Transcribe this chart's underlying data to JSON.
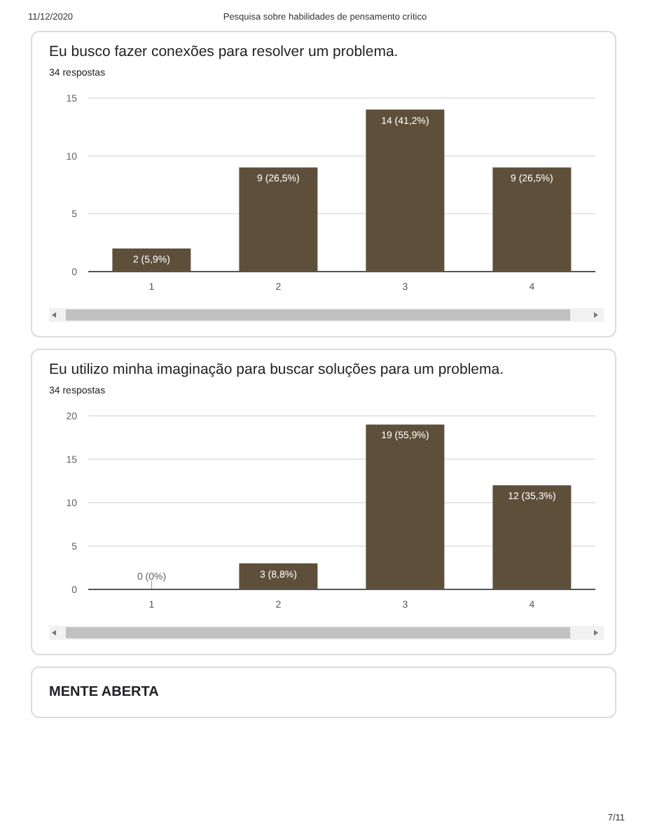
{
  "chart_data": [
    {
      "type": "bar",
      "title": "Eu busco fazer conexões para resolver um problema.",
      "subtitle": "34 respostas",
      "annotations": [
        "11/12/2020",
        "Pesquisa sobre habilidades de pensamento crítico"
      ],
      "categories": [
        "1",
        "2",
        "3",
        "4"
      ],
      "values": [
        2,
        9,
        14,
        9
      ],
      "value_labels": [
        "2 (5,9%)",
        "9 (26,5%)",
        "14 (41,2%)",
        "9 (26,5%)"
      ],
      "color": "#5e4f3b",
      "ylim": [
        0,
        15
      ],
      "yticks": [
        0,
        5,
        10,
        15
      ],
      "grid": "y"
    },
    {
      "type": "bar",
      "title": "Eu utilizo minha imaginação para buscar soluções para um problema.",
      "subtitle": "34 respostas",
      "categories": [
        "1",
        "2",
        "3",
        "4"
      ],
      "values": [
        0,
        3,
        19,
        12
      ],
      "value_labels": [
        "0 (0%)",
        "3 (8,8%)",
        "19 (55,9%)",
        "12 (35,3%)"
      ],
      "color": "#5e4f3b",
      "ylim": [
        0,
        20
      ],
      "yticks": [
        0,
        5,
        10,
        15,
        20
      ],
      "grid": "y"
    },
    {
      "type": "other",
      "title": "MENTE ABERTA",
      "annotations": [
        "7/11"
      ]
    }
  ]
}
